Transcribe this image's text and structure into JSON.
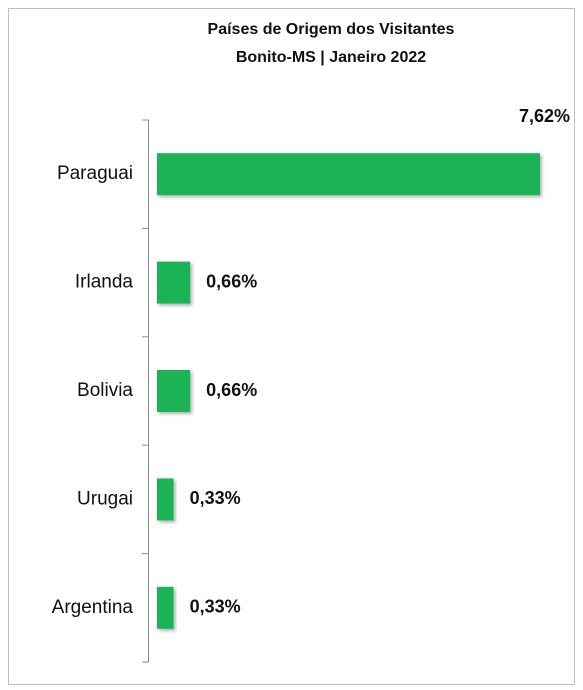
{
  "chart_data": {
    "type": "bar",
    "orientation": "horizontal",
    "title": "Países de Origem dos Visitantes",
    "subtitle": "Bonito-MS | Janeiro 2022",
    "categories": [
      "Paraguai",
      "Irlanda",
      "Bolivia",
      "Urugai",
      "Argentina"
    ],
    "values": [
      7.62,
      0.66,
      0.66,
      0.33,
      0.33
    ],
    "value_labels": [
      "7,62%",
      "0,66%",
      "0,66%",
      "0,33%",
      "0,33%"
    ],
    "color": "#1db256"
  }
}
